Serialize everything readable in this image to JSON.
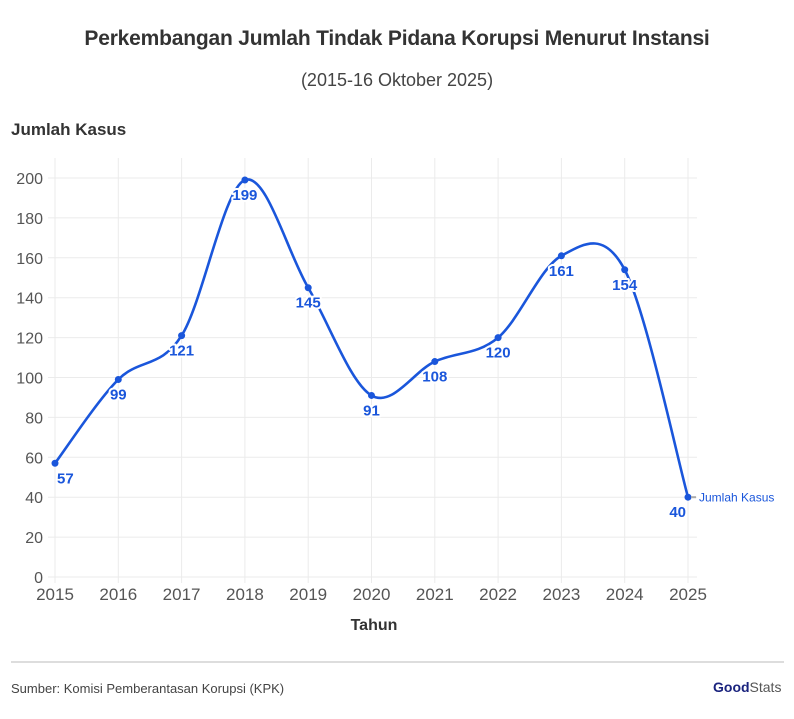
{
  "header": {
    "title": "Perkembangan Jumlah Tindak Pidana Korupsi Menurut Instansi",
    "subtitle": "(2015-16 Oktober 2025)"
  },
  "footer": {
    "source": "Sumber: Komisi Pemberantasan Korupsi (KPK)",
    "brand_bold": "Good",
    "brand_light": "Stats"
  },
  "colors": {
    "series": "#1a56db",
    "grid": "#ebebeb",
    "axis_text": "#555555"
  },
  "chart_data": {
    "type": "line",
    "title": "Perkembangan Jumlah Tindak Pidana Korupsi Menurut Instansi",
    "subtitle": "(2015-16 Oktober 2025)",
    "xlabel": "Tahun",
    "ylabel": "Jumlah Kasus",
    "categories": [
      "2015",
      "2016",
      "2017",
      "2018",
      "2019",
      "2020",
      "2021",
      "2022",
      "2023",
      "2024",
      "2025"
    ],
    "series": [
      {
        "name": "Jumlah Kasus",
        "values": [
          57,
          99,
          121,
          199,
          145,
          91,
          108,
          120,
          161,
          154,
          40
        ]
      }
    ],
    "yticks": [
      0,
      20,
      40,
      60,
      80,
      100,
      120,
      140,
      160,
      180,
      200
    ],
    "ylim": [
      0,
      200
    ],
    "grid": true,
    "smooth": true,
    "legend": "inline label at end of series"
  }
}
